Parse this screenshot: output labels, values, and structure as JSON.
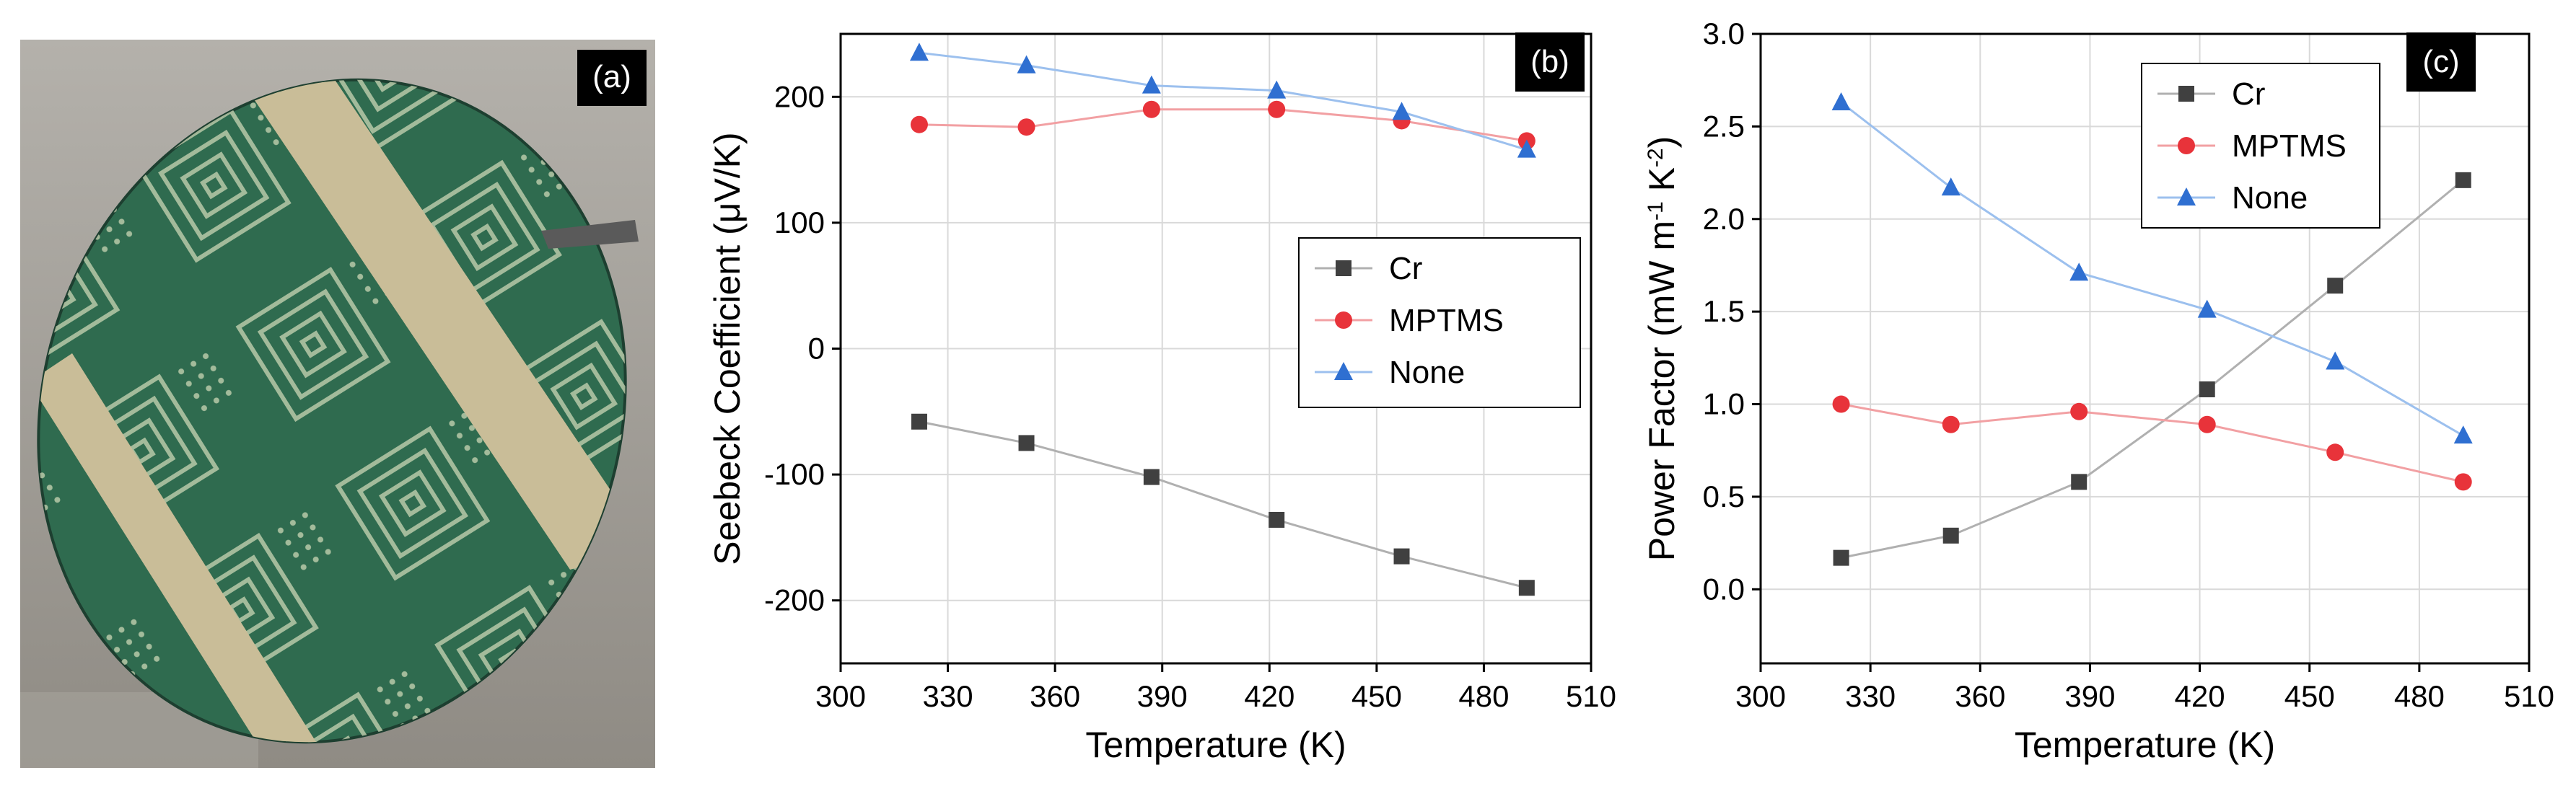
{
  "panels": {
    "a": {
      "label": "(a)"
    },
    "b": {
      "label": "(b)"
    },
    "c": {
      "label": "(c)"
    }
  },
  "colors": {
    "Cr": "#404040",
    "MPTMS": "#e8333a",
    "None": "#2f6fd1",
    "Cr_line": "#b0b0b0",
    "MPTMS_line": "#f2a0a3",
    "None_line": "#9cc0ee",
    "wafer": "#2f6b4f",
    "pad": "#c9bd98"
  },
  "chart_data": [
    {
      "id": "b",
      "type": "line",
      "title": "",
      "xlabel": "Temperature (K)",
      "ylabel": "Seebeck Coefficient (μV/K)",
      "xlim": [
        300,
        510
      ],
      "ylim": [
        -250,
        250
      ],
      "xticks": [
        300,
        330,
        360,
        390,
        420,
        450,
        480,
        510
      ],
      "yticks": [
        -200,
        -100,
        0,
        100,
        200
      ],
      "grid": true,
      "legend_position": "center-right",
      "series": [
        {
          "name": "Cr",
          "marker": "square",
          "x": [
            322,
            352,
            387,
            422,
            457,
            492
          ],
          "y": [
            -58,
            -75,
            -102,
            -136,
            -165,
            -190
          ]
        },
        {
          "name": "MPTMS",
          "marker": "circle",
          "x": [
            322,
            352,
            387,
            422,
            457,
            492
          ],
          "y": [
            178,
            176,
            190,
            190,
            181,
            165
          ]
        },
        {
          "name": "None",
          "marker": "triangle",
          "x": [
            322,
            352,
            387,
            422,
            457,
            492
          ],
          "y": [
            235,
            225,
            209,
            205,
            188,
            158
          ]
        }
      ]
    },
    {
      "id": "c",
      "type": "line",
      "title": "",
      "xlabel": "Temperature (K)",
      "ylabel_main": "Power Factor (mW m",
      "ylabel_exp1": "-1",
      "ylabel_mid": " K",
      "ylabel_exp2": "-2",
      "ylabel_end": ")",
      "xlim": [
        300,
        510
      ],
      "ylim": [
        -0.4,
        3.0
      ],
      "xticks": [
        300,
        330,
        360,
        390,
        420,
        450,
        480,
        510
      ],
      "yticks": [
        0.0,
        0.5,
        1.0,
        1.5,
        2.0,
        2.5,
        3.0
      ],
      "grid": true,
      "legend_position": "top-center",
      "series": [
        {
          "name": "Cr",
          "marker": "square",
          "x": [
            322,
            352,
            387,
            422,
            457,
            492
          ],
          "y": [
            0.17,
            0.29,
            0.58,
            1.08,
            1.64,
            2.21
          ]
        },
        {
          "name": "MPTMS",
          "marker": "circle",
          "x": [
            322,
            352,
            387,
            422,
            457,
            492
          ],
          "y": [
            1.0,
            0.89,
            0.96,
            0.89,
            0.74,
            0.58
          ]
        },
        {
          "name": "None",
          "marker": "triangle",
          "x": [
            322,
            352,
            387,
            422,
            457,
            492
          ],
          "y": [
            2.63,
            2.17,
            1.71,
            1.51,
            1.23,
            0.83
          ]
        }
      ]
    }
  ]
}
